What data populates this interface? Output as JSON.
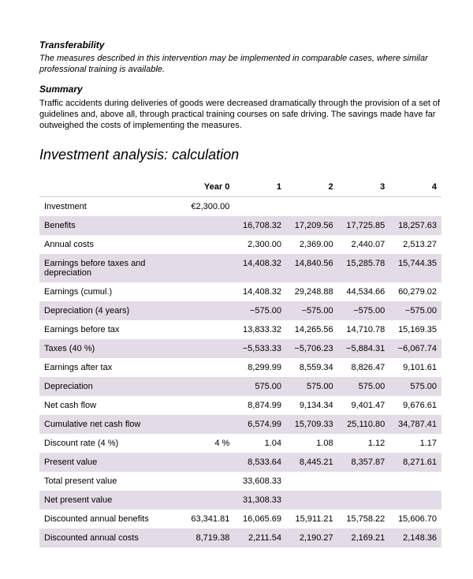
{
  "sections": {
    "transferability_heading": "Transferability",
    "transferability_text": "The measures described in this intervention may be implemented in comparable cases, where similar professional training is available.",
    "summary_heading": "Summary",
    "summary_text": "Traffic accidents during deliveries of goods were decreased dramatically through the provision of a set of guidelines and, above all, through practical training courses on safe driving. The savings made have far outweighed the costs of implementing the measures."
  },
  "table": {
    "title": "Investment analysis: calculation",
    "columns": [
      "",
      "Year 0",
      "1",
      "2",
      "3",
      "4"
    ],
    "rows": [
      {
        "shade": false,
        "cells": [
          "Investment",
          "€2,300.00",
          "",
          "",
          "",
          ""
        ]
      },
      {
        "shade": true,
        "cells": [
          "Benefits",
          "",
          "16,708.32",
          "17,209.56",
          "17,725.85",
          "18,257.63"
        ]
      },
      {
        "shade": false,
        "cells": [
          "Annual costs",
          "",
          "2,300.00",
          "2,369.00",
          "2,440.07",
          "2,513.27"
        ]
      },
      {
        "shade": true,
        "cells": [
          "Earnings before taxes and depreciation",
          "",
          "14,408.32",
          "14,840.56",
          "15,285.78",
          "15,744.35"
        ]
      },
      {
        "shade": false,
        "cells": [
          "Earnings (cumul.)",
          "",
          "14,408.32",
          "29,248.88",
          "44,534.66",
          "60,279.02"
        ]
      },
      {
        "shade": true,
        "cells": [
          "Depreciation (4 years)",
          "",
          "−575.00",
          "−575.00",
          "−575.00",
          "−575.00"
        ]
      },
      {
        "shade": false,
        "cells": [
          "Earnings before tax",
          "",
          "13,833.32",
          "14,265.56",
          "14,710.78",
          "15,169.35"
        ]
      },
      {
        "shade": true,
        "cells": [
          "Taxes (40 %)",
          "",
          "−5,533.33",
          "−5,706.23",
          "−5,884.31",
          "−6,067.74"
        ]
      },
      {
        "shade": false,
        "cells": [
          "Earnings after tax",
          "",
          "8,299.99",
          "8,559.34",
          "8,826.47",
          "9,101.61"
        ]
      },
      {
        "shade": true,
        "cells": [
          "Depreciation",
          "",
          "575.00",
          "575.00",
          "575.00",
          "575.00"
        ]
      },
      {
        "shade": false,
        "cells": [
          "Net cash flow",
          "",
          "8,874.99",
          "9,134.34",
          "9,401.47",
          "9,676.61"
        ]
      },
      {
        "shade": true,
        "cells": [
          "Cumulative net cash flow",
          "",
          "6,574.99",
          "15,709.33",
          "25,110.80",
          "34,787.41"
        ]
      },
      {
        "shade": false,
        "cells": [
          "Discount rate (4 %)",
          "4 %",
          "1.04",
          "1.08",
          "1.12",
          "1.17"
        ]
      },
      {
        "shade": true,
        "cells": [
          "Present value",
          "",
          "8,533.64",
          "8,445.21",
          "8,357.87",
          "8,271.61"
        ]
      },
      {
        "shade": false,
        "cells": [
          "Total present value",
          "",
          "33,608.33",
          "",
          "",
          ""
        ]
      },
      {
        "shade": true,
        "cells": [
          "Net present value",
          "",
          "31,308.33",
          "",
          "",
          ""
        ]
      },
      {
        "shade": false,
        "cells": [
          "Discounted annual benefits",
          "63,341.81",
          "16,065.69",
          "15,911.21",
          "15,758.22",
          "15,606.70"
        ]
      },
      {
        "shade": true,
        "cells": [
          "Discounted annual costs",
          "8,719.38",
          "2,211.54",
          "2,190.27",
          "2,169.21",
          "2,148.36"
        ]
      }
    ],
    "shade_bg": "#e3dce6",
    "header_border": "#cccccc"
  }
}
